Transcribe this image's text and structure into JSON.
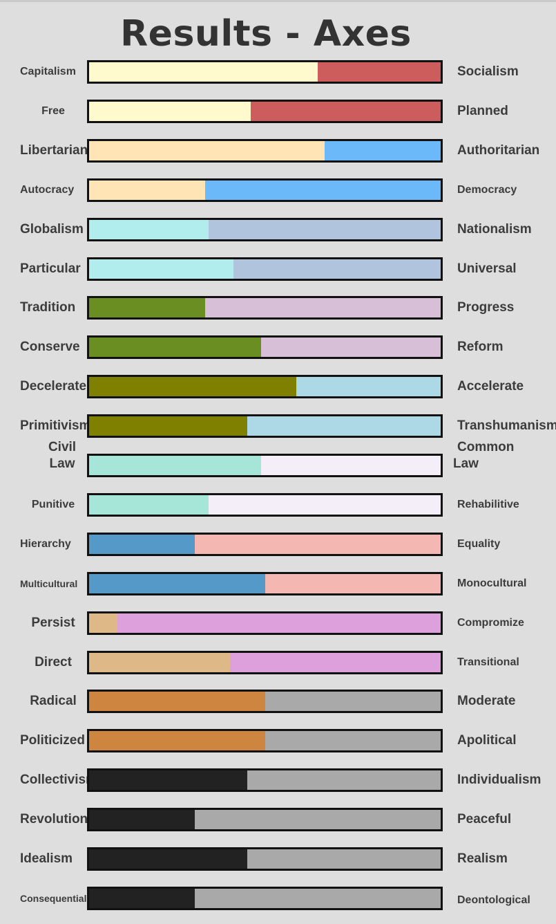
{
  "title": "Results - Axes",
  "axes": [
    {
      "left": "Capitalism",
      "right": "Socialism",
      "value": 65,
      "left_color": "#FFFACD",
      "right_color": "#CD5C5C"
    },
    {
      "left": "Free",
      "right": "Planned",
      "value": 46,
      "left_color": "#FFFACD",
      "right_color": "#CD5C5C"
    },
    {
      "left": "Libertarian",
      "right": "Authoritarian",
      "value": 67,
      "left_color": "#FFE4B5",
      "right_color": "#6CB9F9"
    },
    {
      "left": "Autocracy",
      "right": "Democracy",
      "value": 33,
      "left_color": "#FFE4B5",
      "right_color": "#6CB9F9"
    },
    {
      "left": "Globalism",
      "right": "Nationalism",
      "value": 34,
      "left_color": "#B2EDED",
      "right_color": "#B0C4DE"
    },
    {
      "left": "Particular",
      "right": "Universal",
      "value": 41,
      "left_color": "#B2EDED",
      "right_color": "#B0C4DE"
    },
    {
      "left": "Tradition",
      "right": "Progress",
      "value": 33,
      "left_color": "#6B8E23",
      "right_color": "#D8BFD8"
    },
    {
      "left": "Conserve",
      "right": "Reform",
      "value": 49,
      "left_color": "#6B8E23",
      "right_color": "#D8BFD8"
    },
    {
      "left": "Decelerate",
      "right": "Accelerate",
      "value": 59,
      "left_color": "#808000",
      "right_color": "#ADD8E6"
    },
    {
      "left": "Primitivism",
      "right": "Transhumanism",
      "value": 45,
      "left_color": "#808000",
      "right_color": "#ADD8E6"
    },
    {
      "left": "Civil Law",
      "left_lines": [
        "Civil",
        "Law"
      ],
      "right": "Common Law",
      "right_lines": [
        "Common",
        "Law"
      ],
      "value": 49,
      "left_color": "#A6E6D8",
      "right_color": "#F3EEF8"
    },
    {
      "left": "Punitive",
      "right": "Rehabilitive",
      "value": 34,
      "left_color": "#A6E6D8",
      "right_color": "#F3EEF8"
    },
    {
      "left": "Hierarchy",
      "right": "Equality",
      "value": 30,
      "left_color": "#5499C7",
      "right_color": "#F5B7B1"
    },
    {
      "left": "Multicultural",
      "right": "Monocultural",
      "value": 50,
      "left_color": "#5499C7",
      "right_color": "#F5B7B1"
    },
    {
      "left": "Persist",
      "right": "Compromize",
      "value": 8,
      "left_color": "#DEB887",
      "right_color": "#DDA0DD"
    },
    {
      "left": "Direct",
      "right": "Transitional",
      "value": 40,
      "left_color": "#DEB887",
      "right_color": "#DDA0DD"
    },
    {
      "left": "Radical",
      "right": "Moderate",
      "value": 50,
      "left_color": "#CD853F",
      "right_color": "#A9A9A9"
    },
    {
      "left": "Politicized",
      "right": "Apolitical",
      "value": 50,
      "left_color": "#CD853F",
      "right_color": "#A9A9A9"
    },
    {
      "left": "Collectivism",
      "right": "Individualism",
      "value": 45,
      "left_color": "#222222",
      "right_color": "#A9A9A9"
    },
    {
      "left": "Revolution",
      "right": "Peaceful",
      "value": 30,
      "left_color": "#222222",
      "right_color": "#A9A9A9"
    },
    {
      "left": "Idealism",
      "right": "Realism",
      "value": 45,
      "left_color": "#222222",
      "right_color": "#A9A9A9"
    },
    {
      "left": "Consequentialism",
      "right": "Deontological",
      "value": 30,
      "left_color": "#222222",
      "right_color": "#A9A9A9"
    }
  ]
}
